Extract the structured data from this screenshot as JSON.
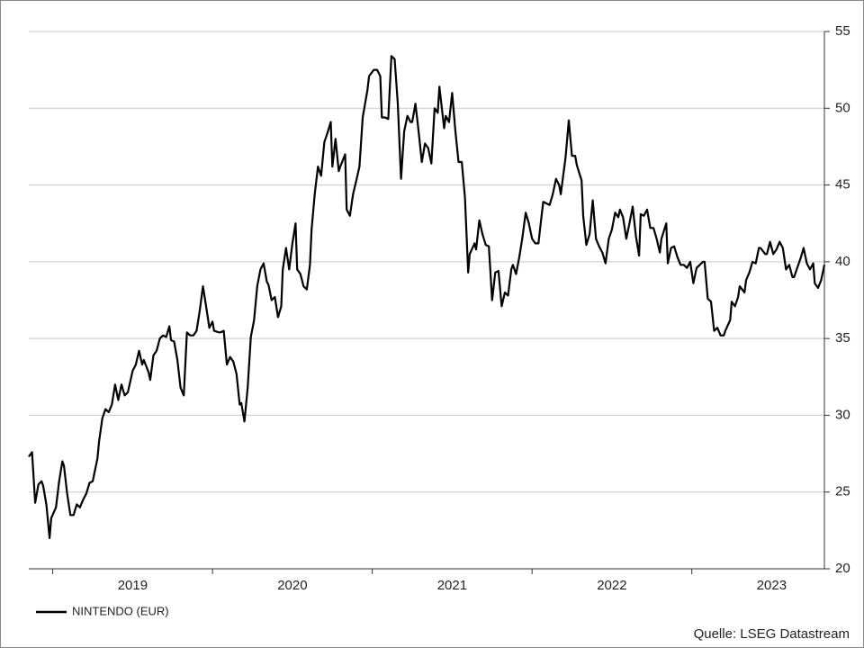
{
  "chart_data": {
    "type": "line",
    "x": [
      2018.85,
      2018.87,
      2018.89,
      2018.91,
      2018.93,
      2018.94,
      2018.96,
      2018.98,
      2018.99,
      2019.02,
      2019.04,
      2019.06,
      2019.07,
      2019.09,
      2019.11,
      2019.13,
      2019.15,
      2019.17,
      2019.19,
      2019.21,
      2019.23,
      2019.25,
      2019.28,
      2019.29,
      2019.31,
      2019.33,
      2019.35,
      2019.37,
      2019.39,
      2019.41,
      2019.43,
      2019.45,
      2019.47,
      2019.5,
      2019.52,
      2019.54,
      2019.56,
      2019.57,
      2019.6,
      2019.61,
      2019.63,
      2019.65,
      2019.67,
      2019.69,
      2019.71,
      2019.73,
      2019.74,
      2019.76,
      2019.78,
      2019.8,
      2019.82,
      2019.84,
      2019.86,
      2019.88,
      2019.9,
      2019.92,
      2019.94,
      2019.96,
      2019.98,
      2020.0,
      2020.01,
      2020.04,
      2020.05,
      2020.07,
      2020.09,
      2020.11,
      2020.13,
      2020.15,
      2020.17,
      2020.18,
      2020.2,
      2020.22,
      2020.24,
      2020.26,
      2020.28,
      2020.3,
      2020.32,
      2020.34,
      2020.35,
      2020.37,
      2020.39,
      2020.41,
      2020.43,
      2020.44,
      2020.46,
      2020.48,
      2020.5,
      2020.52,
      2020.53,
      2020.55,
      2020.57,
      2020.59,
      2020.61,
      2020.62,
      2020.64,
      2020.66,
      2020.68,
      2020.7,
      2020.72,
      2020.74,
      2020.75,
      2020.77,
      2020.79,
      2020.8,
      2020.83,
      2020.84,
      2020.86,
      2020.88,
      2020.9,
      2020.92,
      2020.94,
      2020.97,
      2020.98,
      2021.01,
      2021.03,
      2021.05,
      2021.06,
      2021.08,
      2021.1,
      2021.12,
      2021.14,
      2021.16,
      2021.18,
      2021.2,
      2021.22,
      2021.24,
      2021.25,
      2021.27,
      2021.29,
      2021.31,
      2021.33,
      2021.35,
      2021.37,
      2021.39,
      2021.41,
      2021.42,
      2021.45,
      2021.46,
      2021.48,
      2021.5,
      2021.52,
      2021.54,
      2021.56,
      2021.58,
      2021.6,
      2021.61,
      2021.64,
      2021.65,
      2021.67,
      2021.69,
      2021.71,
      2021.73,
      2021.75,
      2021.77,
      2021.79,
      2021.81,
      2021.83,
      2021.85,
      2021.87,
      2021.88,
      2021.9,
      2021.92,
      2021.94,
      2021.96,
      2021.98,
      2022.0,
      2022.02,
      2022.04,
      2022.05,
      2022.07,
      2022.09,
      2022.11,
      2022.13,
      2022.15,
      2022.17,
      2022.18,
      2022.21,
      2022.23,
      2022.25,
      2022.27,
      2022.28,
      2022.31,
      2022.32,
      2022.34,
      2022.36,
      2022.38,
      2022.4,
      2022.42,
      2022.44,
      2022.46,
      2022.48,
      2022.5,
      2022.52,
      2022.54,
      2022.55,
      2022.57,
      2022.59,
      2022.61,
      2022.63,
      2022.65,
      2022.67,
      2022.68,
      2022.7,
      2022.72,
      2022.74,
      2022.76,
      2022.78,
      2022.8,
      2022.81,
      2022.84,
      2022.85,
      2022.87,
      2022.89,
      2022.91,
      2022.93,
      2022.95,
      2022.97,
      2022.99,
      2023.01,
      2023.03,
      2023.05,
      2023.07,
      2023.08,
      2023.1,
      2023.12,
      2023.14,
      2023.16,
      2023.18,
      2023.2,
      2023.21,
      2023.24,
      2023.25,
      2023.27,
      2023.29,
      2023.3,
      2023.33,
      2023.34,
      2023.36,
      2023.38,
      2023.4,
      2023.42,
      2023.43,
      2023.46,
      2023.47,
      2023.49,
      2023.51,
      2023.53,
      2023.55,
      2023.57,
      2023.59,
      2023.61,
      2023.63,
      2023.64,
      2023.66,
      2023.68,
      2023.7,
      2023.72,
      2023.74,
      2023.76,
      2023.77,
      2023.79,
      2023.81,
      2023.83
    ],
    "series": [
      {
        "name": "NINTENDO (EUR)",
        "color": "#000000",
        "values": [
          27.3,
          27.6,
          24.3,
          25.5,
          25.7,
          25.4,
          24.2,
          22.0,
          23.3,
          24.0,
          25.7,
          27.0,
          26.7,
          24.9,
          23.5,
          23.5,
          24.2,
          24.0,
          24.5,
          24.9,
          25.6,
          25.7,
          27.2,
          28.3,
          29.8,
          30.4,
          30.2,
          30.7,
          32.0,
          31.0,
          32.0,
          31.3,
          31.5,
          32.9,
          33.3,
          34.2,
          33.3,
          33.6,
          32.8,
          32.3,
          33.9,
          34.2,
          35.0,
          35.2,
          35.1,
          35.8,
          34.9,
          34.8,
          33.6,
          31.8,
          31.3,
          35.4,
          35.2,
          35.2,
          35.5,
          36.8,
          38.4,
          37.1,
          35.7,
          36.1,
          35.5,
          35.4,
          35.4,
          35.5,
          33.3,
          33.8,
          33.5,
          32.7,
          30.7,
          30.8,
          29.6,
          31.8,
          35.1,
          36.2,
          38.4,
          39.5,
          39.9,
          38.7,
          38.5,
          37.5,
          37.7,
          36.4,
          37.1,
          39.5,
          40.9,
          39.5,
          41.2,
          42.5,
          39.5,
          39.2,
          38.4,
          38.2,
          39.8,
          42.1,
          44.4,
          46.2,
          45.6,
          47.8,
          48.4,
          49.1,
          46.2,
          48.0,
          45.9,
          46.2,
          47.0,
          43.4,
          43.0,
          44.4,
          45.3,
          46.2,
          49.4,
          51.2,
          52.1,
          52.5,
          52.5,
          52.1,
          49.4,
          49.4,
          49.3,
          53.4,
          53.2,
          50.3,
          45.4,
          48.5,
          49.5,
          49.1,
          49.1,
          50.3,
          48.5,
          46.5,
          47.7,
          47.4,
          46.4,
          50.0,
          49.7,
          51.4,
          48.7,
          49.5,
          49.1,
          51.0,
          48.5,
          46.5,
          46.5,
          44.2,
          39.3,
          40.5,
          41.2,
          40.8,
          42.7,
          41.8,
          41.1,
          41.0,
          37.5,
          39.3,
          39.4,
          37.1,
          38.0,
          37.8,
          39.5,
          39.8,
          39.2,
          40.3,
          41.6,
          43.2,
          42.5,
          41.5,
          41.2,
          41.2,
          42.1,
          43.9,
          43.8,
          43.7,
          44.4,
          45.4,
          45.0,
          44.4,
          46.8,
          49.2,
          46.9,
          46.9,
          46.3,
          45.3,
          43.0,
          41.1,
          41.8,
          44.0,
          41.5,
          41.0,
          40.6,
          39.9,
          41.5,
          42.1,
          43.2,
          42.9,
          43.4,
          42.9,
          41.5,
          42.5,
          43.6,
          41.7,
          40.4,
          43.1,
          43.0,
          43.4,
          42.2,
          42.2,
          41.5,
          40.6,
          41.5,
          42.5,
          39.9,
          40.9,
          41.0,
          40.3,
          39.8,
          39.8,
          39.6,
          40.0,
          38.6,
          39.6,
          39.8,
          40.0,
          40.0,
          37.6,
          37.4,
          35.5,
          35.7,
          35.2,
          35.2,
          35.5,
          36.2,
          37.4,
          37.1,
          37.7,
          38.4,
          38.0,
          38.8,
          39.3,
          40.0,
          39.9,
          40.9,
          40.9,
          40.5,
          40.5,
          41.3,
          40.5,
          40.8,
          41.3,
          40.9,
          39.5,
          39.8,
          39.0,
          39.0,
          39.6,
          40.2,
          40.9,
          39.9,
          39.5,
          39.9,
          38.6,
          38.3,
          38.8,
          39.8
        ]
      }
    ],
    "xlim": [
      2018.85,
      2023.83
    ],
    "xticks": [
      2019,
      2020,
      2021,
      2022,
      2023
    ],
    "ylim": [
      20,
      55
    ],
    "yticks": [
      20,
      25,
      30,
      35,
      40,
      45,
      50,
      55
    ],
    "grid": true,
    "legend": "bottom-left",
    "source": "Quelle: LSEG Datastream"
  }
}
